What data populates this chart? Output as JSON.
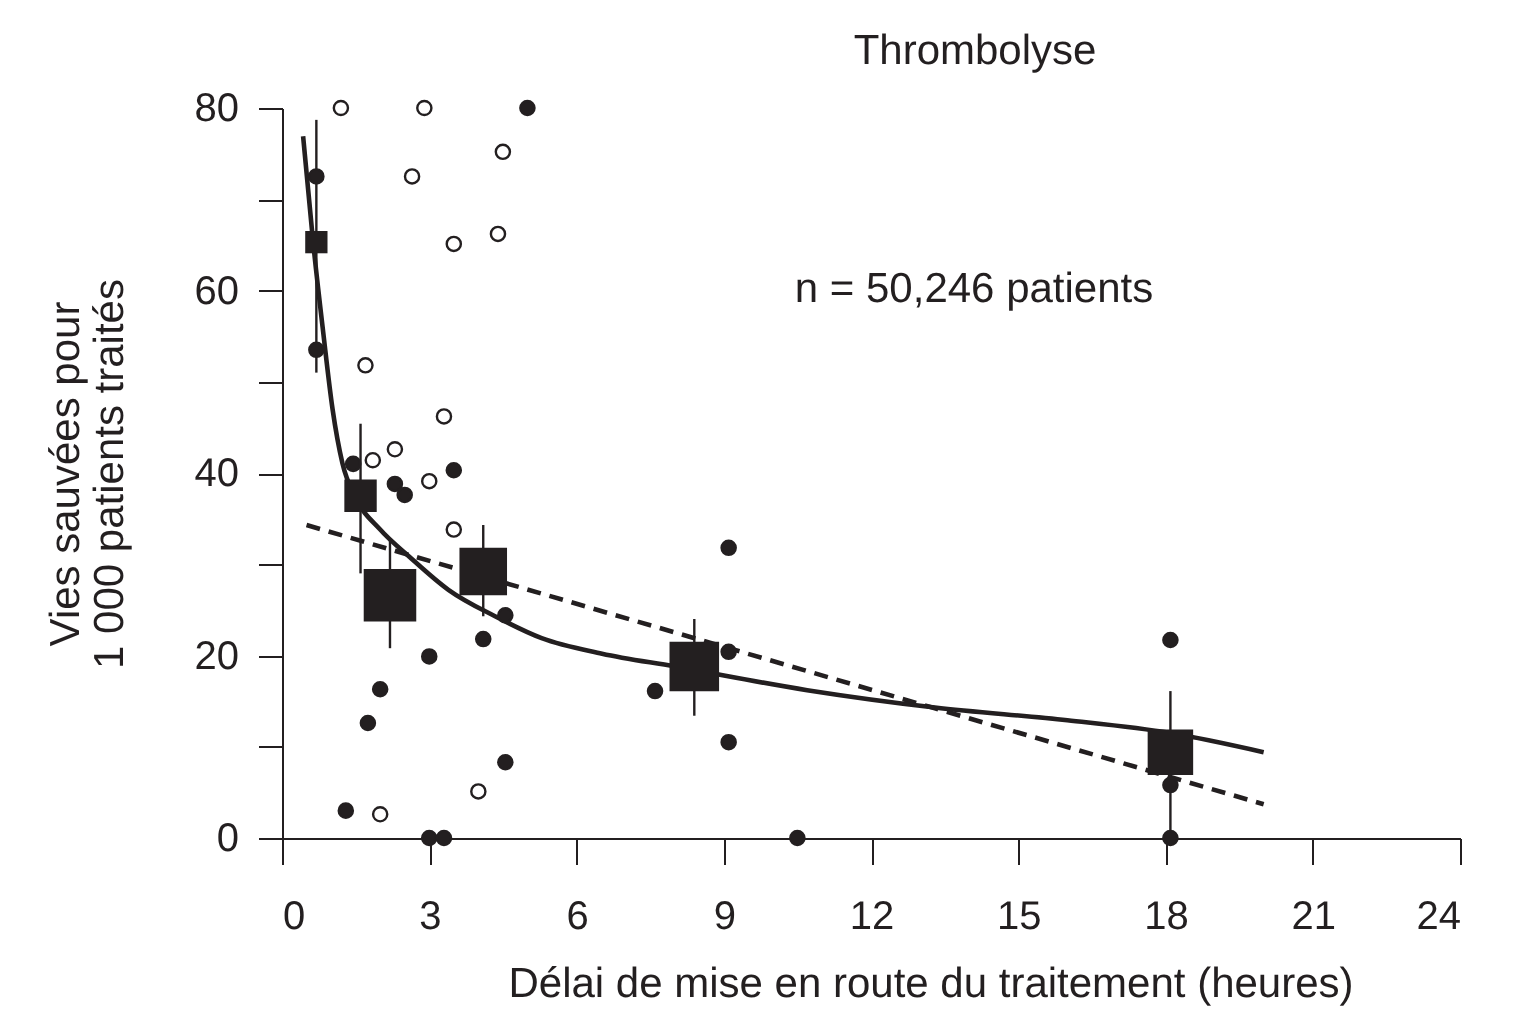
{
  "chart_data": {
    "type": "scatter",
    "title": "Thrombolyse",
    "xlabel": "Délai de mise en route du traitement (heures)",
    "ylabel": "Vies sauvées pour\n1 000 patients traités",
    "annotations": [
      "n = 50,246 patients"
    ],
    "xlim": [
      0,
      24
    ],
    "ylim": [
      0,
      80
    ],
    "xticks": [
      0,
      3,
      6,
      9,
      12,
      15,
      18,
      21,
      24
    ],
    "yticks": [
      0,
      {
        "value": 10,
        "label": null
      },
      20,
      {
        "value": 30,
        "label": null
      },
      40,
      {
        "value": 50,
        "label": null
      },
      60,
      {
        "value": 70,
        "label": null
      },
      80
    ],
    "grid": false,
    "series": [
      {
        "type": "line",
        "color": "#231f20",
        "line_style": "dashed",
        "marker": "none",
        "x": [
          0.5,
          20
        ],
        "values": [
          34.3,
          3.7
        ]
      },
      {
        "type": "line",
        "color": "#231f20",
        "line_style": "solid",
        "marker": "none",
        "x": [
          0.43,
          0.63,
          0.84,
          1.03,
          1.23,
          1.5,
          2.0,
          2.6,
          3.39,
          4.34,
          5.29,
          6.52,
          8.0,
          10.7,
          13.3,
          16.0,
          18.1,
          20.0
        ],
        "values": [
          76.9,
          65.5,
          55.4,
          47,
          41.1,
          37.3,
          33.8,
          30.8,
          27.2,
          24.3,
          21.9,
          20.2,
          18.8,
          16.2,
          14.3,
          12.9,
          11.5,
          9.4
        ]
      },
      {
        "type": "bubble",
        "color": "#231f20",
        "marker": "square",
        "x": [
          0.7,
          1.6,
          2.2,
          4.1,
          8.4,
          18.1
        ],
        "values": [
          65.3,
          37.5,
          26.6,
          29.2,
          18.8,
          9.4
        ],
        "sizes": [
          0.18,
          0.38,
          1,
          0.82,
          0.89,
          0.75
        ],
        "errors": [
          [
            51,
            78.7
          ],
          [
            29,
            45.4
          ],
          [
            20.8,
            32.7
          ],
          [
            24.3,
            34.3
          ],
          [
            13.4,
            24
          ],
          [
            0,
            16.1
          ]
        ]
      },
      {
        "color": "#231f20",
        "marker": "circle",
        "x": [
          0.7,
          0.7,
          5.0,
          1.45,
          3.5,
          2.3,
          2.5,
          4.55,
          4.1,
          3.0,
          2.0,
          1.75,
          4.55,
          1.3,
          3.0,
          3.3,
          9.1,
          9.1,
          7.6,
          9.1,
          10.5,
          18.1,
          18.1,
          18.1
        ],
        "values": [
          72.5,
          53.5,
          80,
          41,
          40.3,
          38.8,
          37.6,
          24.4,
          21.8,
          19.9,
          16.3,
          12.6,
          8.3,
          3.0,
          0,
          0,
          31.8,
          20.4,
          16.1,
          10.5,
          0,
          21.7,
          5.8,
          0
        ]
      },
      {
        "color": "#ffffff",
        "marker": "circle",
        "x": [
          1.2,
          2.9,
          2.65,
          4.5,
          3.5,
          4.4,
          1.7,
          3.3,
          2.3,
          1.85,
          3.0,
          3.5,
          4.0,
          2.0
        ],
        "values": [
          80,
          80,
          72.5,
          75.2,
          65.1,
          66.2,
          51.8,
          46.2,
          42.6,
          41.4,
          39.1,
          33.8,
          5.1,
          2.6
        ]
      }
    ]
  }
}
